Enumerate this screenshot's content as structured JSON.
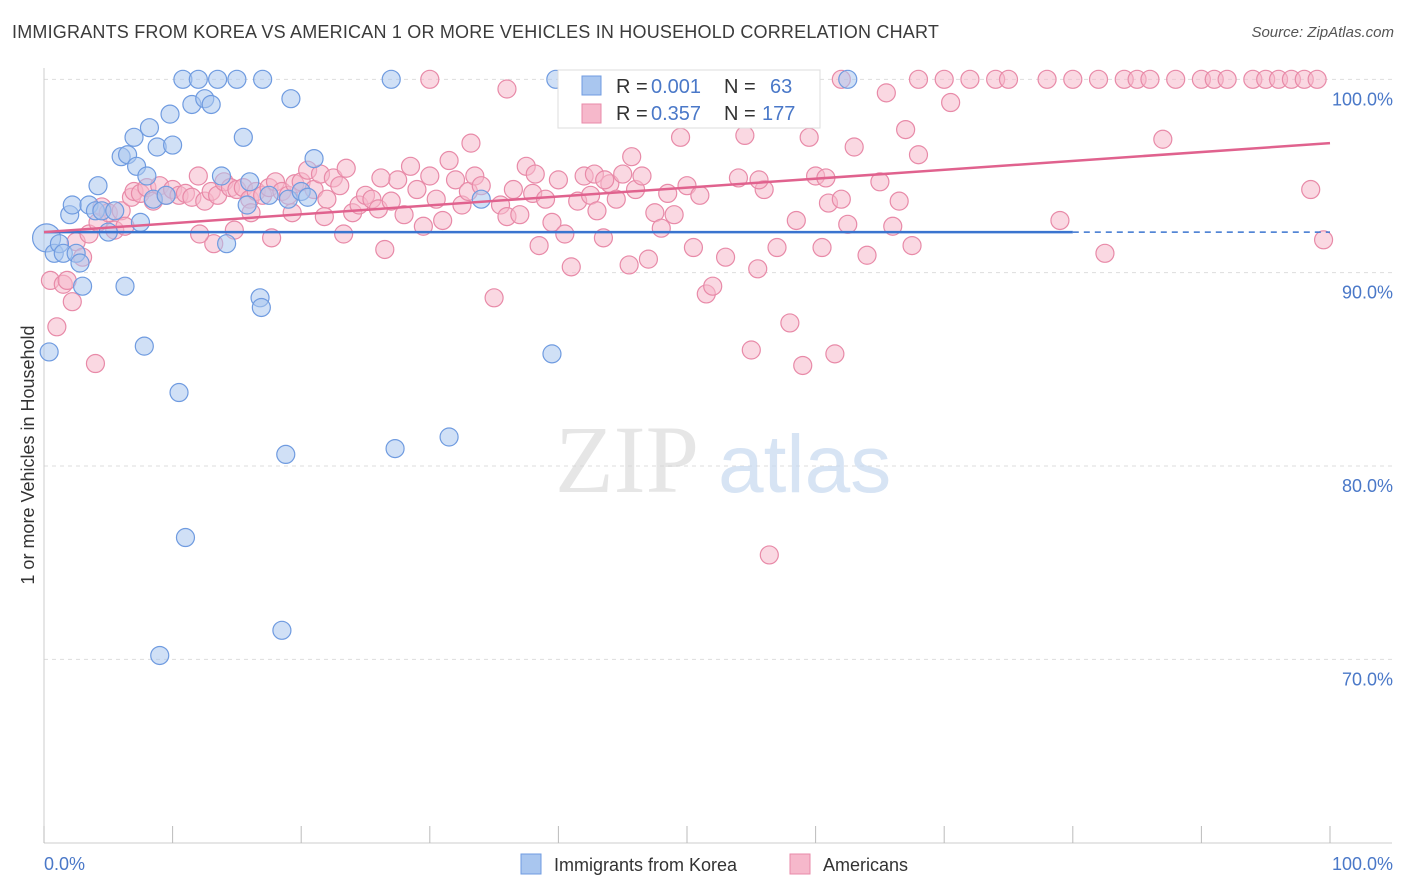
{
  "title": "IMMIGRANTS FROM KOREA VS AMERICAN 1 OR MORE VEHICLES IN HOUSEHOLD CORRELATION CHART",
  "source": "Source: ZipAtlas.com",
  "watermark": {
    "zip": "ZIP",
    "atlas": "atlas"
  },
  "colors": {
    "korea_fill": "#a9c6ef",
    "korea_stroke": "#6f9be0",
    "korea_line": "#3a74cf",
    "american_fill": "#f6b8cb",
    "american_stroke": "#e88aa8",
    "american_line": "#e0628e",
    "tick_text": "#4a78c8",
    "grid": "#dddddd"
  },
  "stats_box": {
    "korea": {
      "r_label": "R =",
      "r_value": "0.001",
      "n_label": "N =",
      "n_value": "63"
    },
    "american": {
      "r_label": "R =",
      "r_value": "0.357",
      "n_label": "N =",
      "n_value": "177"
    }
  },
  "chart_data": {
    "type": "scatter",
    "title": "IMMIGRANTS FROM KOREA VS AMERICAN 1 OR MORE VEHICLES IN HOUSEHOLD CORRELATION CHART",
    "xlabel": "",
    "ylabel": "1 or more Vehicles in Household",
    "xlim": [
      0,
      100
    ],
    "ylim": [
      60.5,
      101
    ],
    "x_tick_labels": [
      "0.0%",
      "100.0%"
    ],
    "y_ticks": [
      {
        "value": 100,
        "label": "100.0%"
      },
      {
        "value": 90,
        "label": "90.0%"
      },
      {
        "value": 80,
        "label": "80.0%"
      },
      {
        "value": 70,
        "label": "70.0%"
      }
    ],
    "grid": true,
    "legend_position": "bottom-center",
    "series": [
      {
        "name": "Immigrants from Korea",
        "trend": {
          "x": [
            0,
            80
          ],
          "y": [
            92.1,
            92.1
          ],
          "dashed_extension_to": 100
        },
        "points": [
          [
            0.2,
            91.8
          ],
          [
            0.4,
            85.9
          ],
          [
            0.8,
            91.0
          ],
          [
            1.2,
            91.5
          ],
          [
            1.5,
            91.0
          ],
          [
            2.0,
            93.0
          ],
          [
            2.5,
            91.0
          ],
          [
            2.2,
            93.5
          ],
          [
            2.8,
            90.5
          ],
          [
            3.0,
            89.3
          ],
          [
            3.5,
            93.5
          ],
          [
            4.0,
            93.2
          ],
          [
            4.2,
            94.5
          ],
          [
            4.5,
            93.2
          ],
          [
            5.0,
            92.1
          ],
          [
            5.5,
            93.2
          ],
          [
            6.0,
            96.0
          ],
          [
            6.3,
            89.3
          ],
          [
            6.5,
            96.1
          ],
          [
            7.0,
            97.0
          ],
          [
            7.2,
            95.5
          ],
          [
            7.5,
            92.6
          ],
          [
            7.8,
            86.2
          ],
          [
            8.0,
            95.0
          ],
          [
            8.2,
            97.5
          ],
          [
            8.5,
            93.8
          ],
          [
            8.8,
            96.5
          ],
          [
            9.0,
            70.2
          ],
          [
            9.5,
            94.0
          ],
          [
            9.8,
            98.2
          ],
          [
            10.0,
            96.6
          ],
          [
            10.5,
            83.8
          ],
          [
            10.8,
            100.0
          ],
          [
            11.0,
            76.3
          ],
          [
            11.5,
            98.7
          ],
          [
            12.0,
            100.0
          ],
          [
            12.5,
            99.0
          ],
          [
            13.0,
            98.7
          ],
          [
            13.5,
            100.0
          ],
          [
            13.8,
            95.0
          ],
          [
            14.2,
            91.5
          ],
          [
            15.0,
            100.0
          ],
          [
            15.5,
            97.0
          ],
          [
            15.8,
            93.5
          ],
          [
            16.0,
            94.7
          ],
          [
            16.8,
            88.7
          ],
          [
            16.9,
            88.2
          ],
          [
            17.0,
            100.0
          ],
          [
            17.5,
            94.0
          ],
          [
            18.5,
            71.5
          ],
          [
            18.8,
            80.6
          ],
          [
            19.0,
            93.8
          ],
          [
            19.2,
            99.0
          ],
          [
            20.0,
            94.2
          ],
          [
            20.5,
            93.9
          ],
          [
            21.0,
            95.9
          ],
          [
            27.0,
            100.0
          ],
          [
            27.3,
            80.9
          ],
          [
            31.5,
            81.5
          ],
          [
            34.0,
            93.8
          ],
          [
            39.5,
            85.8
          ],
          [
            39.8,
            100.0
          ],
          [
            62.5,
            100.0
          ]
        ]
      },
      {
        "name": "Americans",
        "trend": {
          "x": [
            0,
            100
          ],
          "y": [
            92.1,
            96.7
          ]
        },
        "points": [
          [
            0.5,
            89.6
          ],
          [
            1.0,
            87.2
          ],
          [
            1.5,
            89.4
          ],
          [
            1.8,
            89.6
          ],
          [
            2.2,
            88.5
          ],
          [
            2.5,
            91.6
          ],
          [
            3.0,
            90.8
          ],
          [
            3.5,
            92.0
          ],
          [
            4.0,
            85.3
          ],
          [
            4.2,
            92.6
          ],
          [
            4.5,
            93.4
          ],
          [
            5.0,
            93.1
          ],
          [
            5.5,
            92.2
          ],
          [
            6.0,
            93.2
          ],
          [
            6.3,
            92.4
          ],
          [
            6.8,
            93.9
          ],
          [
            7.0,
            94.2
          ],
          [
            7.5,
            94.1
          ],
          [
            8.0,
            94.4
          ],
          [
            8.5,
            93.7
          ],
          [
            9.0,
            94.5
          ],
          [
            9.5,
            94.0
          ],
          [
            10.0,
            94.3
          ],
          [
            10.5,
            94.0
          ],
          [
            11.0,
            94.1
          ],
          [
            11.5,
            93.9
          ],
          [
            12.0,
            95.0
          ],
          [
            12.5,
            93.7
          ],
          [
            13.0,
            94.2
          ],
          [
            13.5,
            94.0
          ],
          [
            14.0,
            94.7
          ],
          [
            14.5,
            94.4
          ],
          [
            15.0,
            94.3
          ],
          [
            15.5,
            94.4
          ],
          [
            16.0,
            93.8
          ],
          [
            16.5,
            94.2
          ],
          [
            17.0,
            94.0
          ],
          [
            17.5,
            94.4
          ],
          [
            18.0,
            94.7
          ],
          [
            18.5,
            94.2
          ],
          [
            19.0,
            94.0
          ],
          [
            19.5,
            94.6
          ],
          [
            20.0,
            94.7
          ],
          [
            20.5,
            95.3
          ],
          [
            21.0,
            94.3
          ],
          [
            21.5,
            95.1
          ],
          [
            22.0,
            93.8
          ],
          [
            22.5,
            94.9
          ],
          [
            23.0,
            94.5
          ],
          [
            23.5,
            95.4
          ],
          [
            24.0,
            93.1
          ],
          [
            24.5,
            93.5
          ],
          [
            25.0,
            94.0
          ],
          [
            25.5,
            93.8
          ],
          [
            26.0,
            93.3
          ],
          [
            26.5,
            91.2
          ],
          [
            27.0,
            93.7
          ],
          [
            27.5,
            94.8
          ],
          [
            28.0,
            93.0
          ],
          [
            28.5,
            95.5
          ],
          [
            29.0,
            94.3
          ],
          [
            29.5,
            92.4
          ],
          [
            30.0,
            95.0
          ],
          [
            30.5,
            93.8
          ],
          [
            31.0,
            92.7
          ],
          [
            31.5,
            95.8
          ],
          [
            32.0,
            94.8
          ],
          [
            32.5,
            93.5
          ],
          [
            33.0,
            94.2
          ],
          [
            33.5,
            95.0
          ],
          [
            34.0,
            94.5
          ],
          [
            35.0,
            88.7
          ],
          [
            35.5,
            93.5
          ],
          [
            36.0,
            92.9
          ],
          [
            36.5,
            94.3
          ],
          [
            37.0,
            93.0
          ],
          [
            37.5,
            95.5
          ],
          [
            38.0,
            94.1
          ],
          [
            38.5,
            91.4
          ],
          [
            39.0,
            93.8
          ],
          [
            39.5,
            92.6
          ],
          [
            40.0,
            94.8
          ],
          [
            40.5,
            92.0
          ],
          [
            41.0,
            90.3
          ],
          [
            41.5,
            93.7
          ],
          [
            42.0,
            95.0
          ],
          [
            42.5,
            94.0
          ],
          [
            43.0,
            93.2
          ],
          [
            43.5,
            91.8
          ],
          [
            44.0,
            94.6
          ],
          [
            44.5,
            93.8
          ],
          [
            45.0,
            95.1
          ],
          [
            45.5,
            90.4
          ],
          [
            46.0,
            94.3
          ],
          [
            46.5,
            95.0
          ],
          [
            47.0,
            90.7
          ],
          [
            47.5,
            93.1
          ],
          [
            48.0,
            92.3
          ],
          [
            48.5,
            94.1
          ],
          [
            49.0,
            93.0
          ],
          [
            49.5,
            97.0
          ],
          [
            50.0,
            94.5
          ],
          [
            50.5,
            91.3
          ],
          [
            51.0,
            94.0
          ],
          [
            51.5,
            88.9
          ],
          [
            52.0,
            89.3
          ],
          [
            53.0,
            90.8
          ],
          [
            54.0,
            94.9
          ],
          [
            54.5,
            97.1
          ],
          [
            55.0,
            86.0
          ],
          [
            55.5,
            90.2
          ],
          [
            56.0,
            94.3
          ],
          [
            57.0,
            91.3
          ],
          [
            58.0,
            87.4
          ],
          [
            58.5,
            92.7
          ],
          [
            59.0,
            85.2
          ],
          [
            59.5,
            97.0
          ],
          [
            60.0,
            95.0
          ],
          [
            60.5,
            91.3
          ],
          [
            61.0,
            93.6
          ],
          [
            61.5,
            85.8
          ],
          [
            62.0,
            93.8
          ],
          [
            62.5,
            92.5
          ],
          [
            63.0,
            96.5
          ],
          [
            64.0,
            90.9
          ],
          [
            65.0,
            94.7
          ],
          [
            66.0,
            92.4
          ],
          [
            66.5,
            93.7
          ],
          [
            67.0,
            97.4
          ],
          [
            67.5,
            91.4
          ],
          [
            68.0,
            96.1
          ],
          [
            60.8,
            94.9
          ],
          [
            56.4,
            75.4
          ],
          [
            42.8,
            95.1
          ],
          [
            43.6,
            94.8
          ],
          [
            30.0,
            100.0
          ],
          [
            41.1,
            99.8
          ],
          [
            36.0,
            99.5
          ],
          [
            62.0,
            100.0
          ],
          [
            68.0,
            100.0
          ],
          [
            70.0,
            100.0
          ],
          [
            72.0,
            100.0
          ],
          [
            74.0,
            100.0
          ],
          [
            75.0,
            100.0
          ],
          [
            78.0,
            100.0
          ],
          [
            80.0,
            100.0
          ],
          [
            82.0,
            100.0
          ],
          [
            84.0,
            100.0
          ],
          [
            85.0,
            100.0
          ],
          [
            86.0,
            100.0
          ],
          [
            88.0,
            100.0
          ],
          [
            90.0,
            100.0
          ],
          [
            91.0,
            100.0
          ],
          [
            92.0,
            100.0
          ],
          [
            94.0,
            100.0
          ],
          [
            95.0,
            100.0
          ],
          [
            96.0,
            100.0
          ],
          [
            97.0,
            100.0
          ],
          [
            98.0,
            100.0
          ],
          [
            99.0,
            100.0
          ],
          [
            98.5,
            94.3
          ],
          [
            99.5,
            91.7
          ],
          [
            87.0,
            96.9
          ],
          [
            79.0,
            92.7
          ],
          [
            82.5,
            91.0
          ],
          [
            70.5,
            98.8
          ],
          [
            65.5,
            99.3
          ],
          [
            55.6,
            94.8
          ],
          [
            45.7,
            96.0
          ],
          [
            38.2,
            95.1
          ],
          [
            33.2,
            96.7
          ],
          [
            26.2,
            94.9
          ],
          [
            23.3,
            92.0
          ],
          [
            21.8,
            92.9
          ],
          [
            19.3,
            93.1
          ],
          [
            17.7,
            91.8
          ],
          [
            16.1,
            93.1
          ],
          [
            14.8,
            92.2
          ],
          [
            13.2,
            91.5
          ],
          [
            12.1,
            92.0
          ]
        ]
      }
    ]
  },
  "legend": [
    {
      "name": "Immigrants from Korea"
    },
    {
      "name": "Americans"
    }
  ]
}
